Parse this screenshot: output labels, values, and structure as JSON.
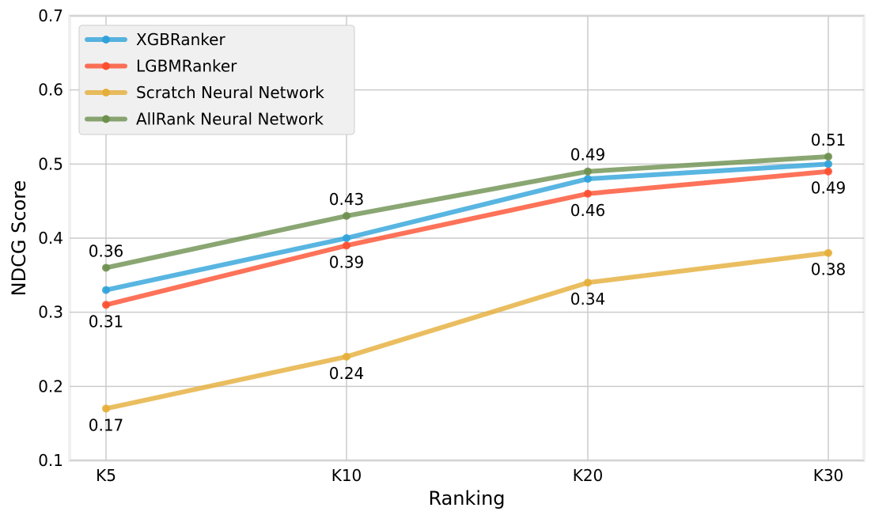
{
  "chart_data": {
    "type": "line",
    "title": "",
    "xlabel": "Ranking",
    "ylabel": "NDCG Score",
    "categories": [
      "K5",
      "K10",
      "K20",
      "K30"
    ],
    "ylim": [
      0.1,
      0.7
    ],
    "yticks": [
      "0.1",
      "0.2",
      "0.3",
      "0.4",
      "0.5",
      "0.6",
      "0.7"
    ],
    "grid": true,
    "legend_position": "top-left",
    "series": [
      {
        "name": "XGBRanker",
        "color": "#30a2da",
        "values": [
          0.33,
          0.4,
          0.48,
          0.5
        ],
        "labels": [
          "",
          "",
          "",
          ""
        ]
      },
      {
        "name": "LGBMRanker",
        "color": "#fc4f30",
        "values": [
          0.31,
          0.39,
          0.46,
          0.49
        ],
        "labels": [
          "0.31",
          "0.39",
          "0.46",
          "0.49"
        ],
        "label_position": "below"
      },
      {
        "name": "Scratch Neural Network",
        "color": "#e5ae38",
        "values": [
          0.17,
          0.24,
          0.34,
          0.38
        ],
        "labels": [
          "0.17",
          "0.24",
          "0.34",
          "0.38"
        ],
        "label_position": "below"
      },
      {
        "name": "AllRank Neural Network",
        "color": "#6d904f",
        "values": [
          0.36,
          0.43,
          0.49,
          0.51
        ],
        "labels": [
          "0.36",
          "0.43",
          "0.49",
          "0.51"
        ],
        "label_position": "above"
      }
    ]
  }
}
